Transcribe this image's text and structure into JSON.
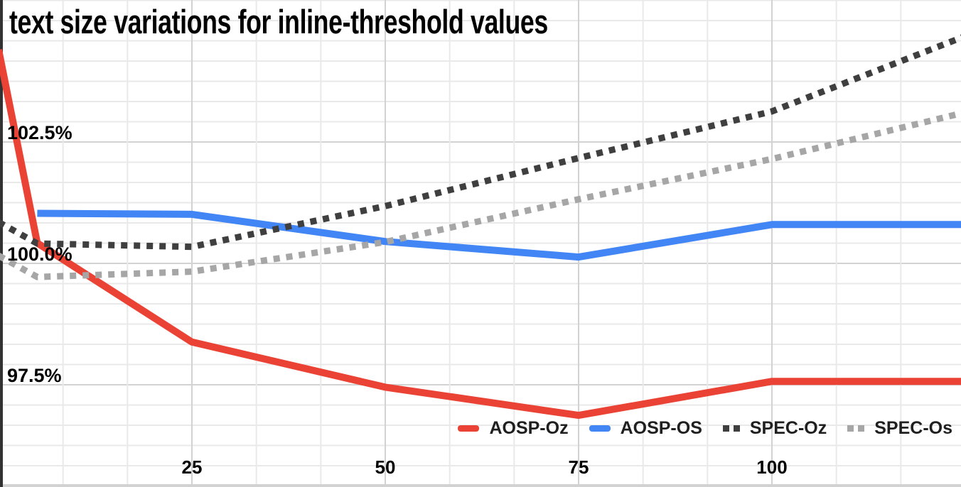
{
  "chart_data": {
    "type": "line",
    "title": "text size variations for inline-threshold values",
    "xlabel": "",
    "ylabel": "",
    "x_range": [
      0,
      124.5
    ],
    "y_range_percent": [
      95.5,
      105.4
    ],
    "grid": {
      "on": true,
      "x_minor_step": 8.33,
      "x_major_step": 25,
      "y_minor_step": 0.417,
      "y_major_step": 2.5
    },
    "legend_position": "bottom-right-inside",
    "x_ticks": [
      {
        "value": 25,
        "label": "25"
      },
      {
        "value": 50,
        "label": "50"
      },
      {
        "value": 75,
        "label": "75"
      },
      {
        "value": 100,
        "label": "100"
      }
    ],
    "y_ticks": [
      {
        "value": 102.5,
        "label": "102.5%"
      },
      {
        "value": 100.0,
        "label": "100.0%"
      },
      {
        "value": 97.5,
        "label": "97.5%"
      }
    ],
    "series": [
      {
        "name": "AOSP-Oz",
        "color": "#ea4335",
        "style": "solid",
        "points": [
          [
            0,
            104.4
          ],
          [
            5,
            100.42
          ],
          [
            25,
            98.38
          ],
          [
            50,
            97.45
          ],
          [
            75,
            96.87
          ],
          [
            100,
            97.57
          ],
          [
            125,
            97.57
          ]
        ]
      },
      {
        "name": "AOSP-OS",
        "color": "#4285f4",
        "style": "solid",
        "points": [
          [
            5,
            101.03
          ],
          [
            25,
            101.01
          ],
          [
            50,
            100.45
          ],
          [
            75,
            100.13
          ],
          [
            100,
            100.8
          ],
          [
            125,
            100.8
          ]
        ]
      },
      {
        "name": "SPEC-Oz",
        "color": "#3f3f3f",
        "style": "dotted",
        "points": [
          [
            0,
            100.85
          ],
          [
            5,
            100.41
          ],
          [
            25,
            100.34
          ],
          [
            50,
            101.18
          ],
          [
            75,
            102.17
          ],
          [
            100,
            103.13
          ],
          [
            125,
            104.68
          ]
        ]
      },
      {
        "name": "SPEC-Os",
        "color": "#a6a6a6",
        "style": "dotted",
        "points": [
          [
            0,
            100.16
          ],
          [
            5,
            99.72
          ],
          [
            25,
            99.83
          ],
          [
            50,
            100.44
          ],
          [
            75,
            101.32
          ],
          [
            100,
            102.15
          ],
          [
            125,
            103.11
          ]
        ]
      }
    ],
    "colors": {
      "background": "#ffffff",
      "grid_minor": "#e9e9e9",
      "grid_major": "#d2d2d2",
      "axis_line": "#323232",
      "bottom_edge": "#d2d2d2",
      "tick_text": "#000000",
      "legend_text": "#1f1f1f"
    }
  }
}
